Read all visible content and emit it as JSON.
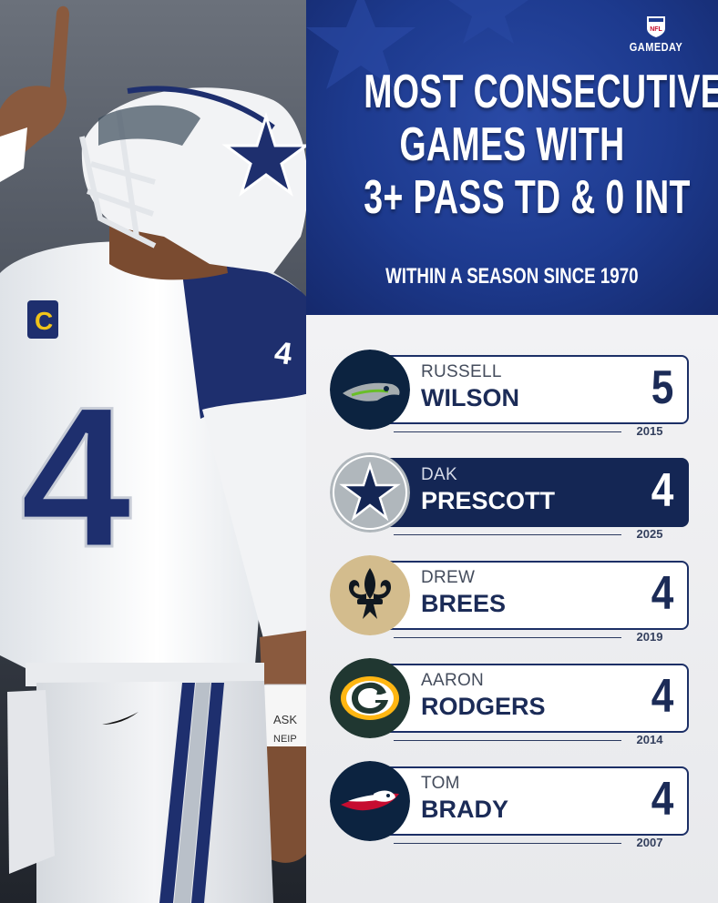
{
  "brand": {
    "shield_text": "NFL",
    "name": "GAMEDAY"
  },
  "title": {
    "lines": [
      "MOST CONSECUTIVE",
      "GAMES WITH",
      "3+ PASS TD & 0 INT"
    ],
    "subtitle": "WITHIN A SEASON SINCE 1970"
  },
  "photo": {
    "jersey_number": "4",
    "wristband_text_1": "ASK",
    "wristband_text_2": "NEIP"
  },
  "colors": {
    "header_blue": "#1d3a8e",
    "navy": "#142654",
    "seahawks_navy": "#0c2340",
    "cowboys_silver": "#b0b7bc",
    "saints_gold": "#d3bc8d",
    "packers_green": "#203731",
    "patriots_navy": "#0c2340"
  },
  "players": [
    {
      "first": "RUSSELL",
      "last": "WILSON",
      "games": "5",
      "year": "2015",
      "team_icon": "seahawks-logo-icon",
      "highlight": false
    },
    {
      "first": "DAK",
      "last": "PRESCOTT",
      "games": "4",
      "year": "2025",
      "team_icon": "cowboys-star-icon",
      "highlight": true
    },
    {
      "first": "DREW",
      "last": "BREES",
      "games": "4",
      "year": "2019",
      "team_icon": "saints-fleur-de-lis-icon",
      "highlight": false
    },
    {
      "first": "AARON",
      "last": "RODGERS",
      "games": "4",
      "year": "2014",
      "team_icon": "packers-g-icon",
      "highlight": false
    },
    {
      "first": "TOM",
      "last": "BRADY",
      "games": "4",
      "year": "2007",
      "team_icon": "patriots-flying-elvis-icon",
      "highlight": false
    }
  ]
}
